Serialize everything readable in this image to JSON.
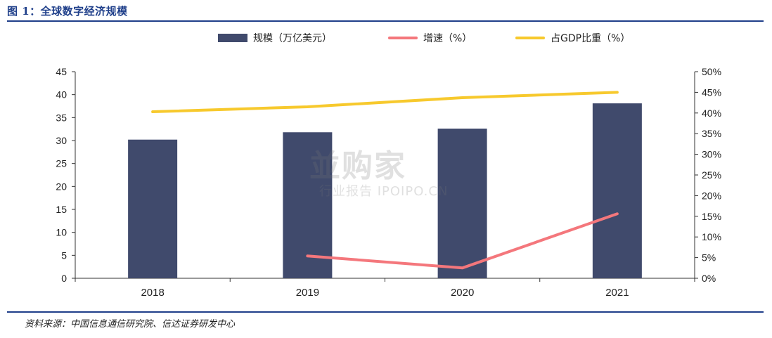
{
  "figure_title": "图 1：全球数字经济规模",
  "source_note": "资料来源：中国信息通信研究院、信达证券研发中心",
  "watermark": {
    "main": "並购家",
    "sub": "行业报告 IPOIPO.CN"
  },
  "colors": {
    "bar": "#404a6c",
    "growth": "#f4777c",
    "gdp_share": "#f7c92d",
    "title_blue": "#1f3f8a"
  },
  "chart_data": {
    "type": "bar",
    "categories": [
      "2018",
      "2019",
      "2020",
      "2021"
    ],
    "series": [
      {
        "name": "规模（万亿美元）",
        "type": "bar",
        "axis": "left",
        "values": [
          30.2,
          31.8,
          32.6,
          38.1
        ]
      },
      {
        "name": "增速（%）",
        "type": "line",
        "axis": "right",
        "values": [
          null,
          5.4,
          2.5,
          15.6
        ]
      },
      {
        "name": "占GDP比重（%）",
        "type": "line",
        "axis": "right",
        "values": [
          40.3,
          41.5,
          43.7,
          45.0
        ]
      }
    ],
    "left_axis": {
      "min": 0,
      "max": 45,
      "step": 5,
      "ticks": [
        "0",
        "5",
        "10",
        "15",
        "20",
        "25",
        "30",
        "35",
        "40",
        "45"
      ]
    },
    "right_axis": {
      "min": 0,
      "max": 50,
      "step": 5,
      "ticks": [
        "0%",
        "5%",
        "10%",
        "15%",
        "20%",
        "25%",
        "30%",
        "35%",
        "40%",
        "45%",
        "50%"
      ]
    },
    "legend_position": "top",
    "grid": false
  }
}
